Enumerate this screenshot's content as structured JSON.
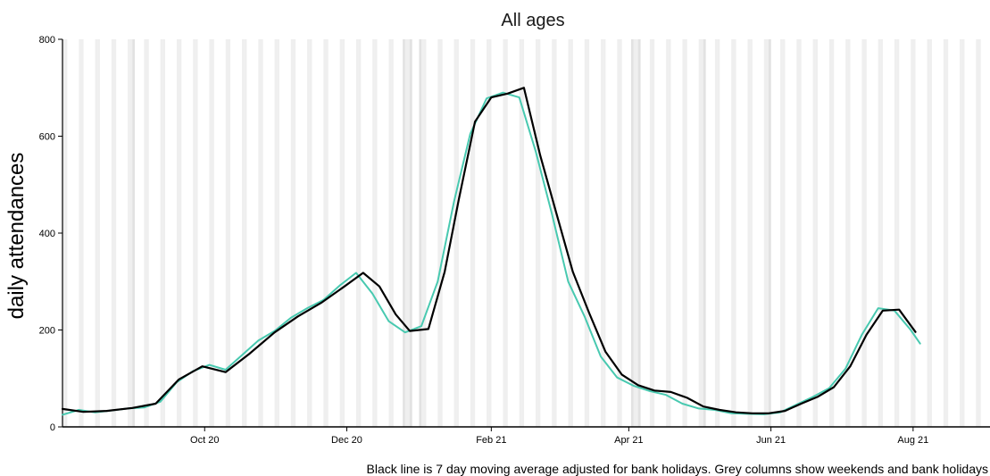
{
  "chart_data": {
    "type": "line",
    "title": "All ages",
    "xlabel": "",
    "ylabel": "daily attendances",
    "caption": "Black line is 7 day moving average adjusted for bank holidays. Grey columns show weekends and bank holidays",
    "x_range": [
      "2020-08-01",
      "2021-09-03"
    ],
    "ylim": [
      0,
      800
    ],
    "y_ticks": [
      0,
      200,
      400,
      600,
      800
    ],
    "x_ticks": [
      {
        "date": "2020-10-01",
        "label": "Oct 20"
      },
      {
        "date": "2020-12-01",
        "label": "Dec 20"
      },
      {
        "date": "2021-02-01",
        "label": "Feb 21"
      },
      {
        "date": "2021-04-01",
        "label": "Apr 21"
      },
      {
        "date": "2021-06-01",
        "label": "Jun 21"
      },
      {
        "date": "2021-08-01",
        "label": "Aug 21"
      }
    ],
    "bank_holidays": [
      "2020-08-31",
      "2020-12-25",
      "2020-12-28",
      "2021-01-01",
      "2021-04-02",
      "2021-04-05",
      "2021-05-03",
      "2021-05-31"
    ],
    "grid": false,
    "legend": "none",
    "series": [
      {
        "role": "daily",
        "color": "#48c9b0",
        "points": [
          [
            "2020-08-01",
            25
          ],
          [
            "2020-08-08",
            35
          ],
          [
            "2020-08-15",
            30
          ],
          [
            "2020-08-22",
            34
          ],
          [
            "2020-08-29",
            38
          ],
          [
            "2020-09-05",
            40
          ],
          [
            "2020-09-12",
            52
          ],
          [
            "2020-09-19",
            92
          ],
          [
            "2020-09-26",
            115
          ],
          [
            "2020-10-03",
            128
          ],
          [
            "2020-10-10",
            118
          ],
          [
            "2020-10-17",
            148
          ],
          [
            "2020-10-24",
            178
          ],
          [
            "2020-10-31",
            198
          ],
          [
            "2020-11-07",
            225
          ],
          [
            "2020-11-14",
            245
          ],
          [
            "2020-11-21",
            262
          ],
          [
            "2020-11-28",
            292
          ],
          [
            "2020-12-05",
            318
          ],
          [
            "2020-12-12",
            275
          ],
          [
            "2020-12-19",
            218
          ],
          [
            "2020-12-26",
            195
          ],
          [
            "2021-01-02",
            208
          ],
          [
            "2021-01-09",
            300
          ],
          [
            "2021-01-16",
            465
          ],
          [
            "2021-01-23",
            605
          ],
          [
            "2021-01-30",
            678
          ],
          [
            "2021-02-06",
            690
          ],
          [
            "2021-02-13",
            680
          ],
          [
            "2021-02-20",
            570
          ],
          [
            "2021-02-27",
            440
          ],
          [
            "2021-03-06",
            300
          ],
          [
            "2021-03-13",
            228
          ],
          [
            "2021-03-20",
            145
          ],
          [
            "2021-03-27",
            102
          ],
          [
            "2021-04-03",
            85
          ],
          [
            "2021-04-10",
            74
          ],
          [
            "2021-04-17",
            66
          ],
          [
            "2021-04-24",
            48
          ],
          [
            "2021-05-01",
            38
          ],
          [
            "2021-05-08",
            35
          ],
          [
            "2021-05-15",
            28
          ],
          [
            "2021-05-22",
            27
          ],
          [
            "2021-05-29",
            26
          ],
          [
            "2021-06-05",
            30
          ],
          [
            "2021-06-12",
            46
          ],
          [
            "2021-06-19",
            62
          ],
          [
            "2021-06-26",
            80
          ],
          [
            "2021-07-03",
            120
          ],
          [
            "2021-07-10",
            190
          ],
          [
            "2021-07-17",
            245
          ],
          [
            "2021-07-24",
            240
          ],
          [
            "2021-07-31",
            200
          ],
          [
            "2021-08-04",
            172
          ]
        ]
      },
      {
        "role": "7-day moving average",
        "color": "#000000",
        "points": [
          [
            "2020-08-01",
            37
          ],
          [
            "2020-08-10",
            31
          ],
          [
            "2020-08-20",
            33
          ],
          [
            "2020-08-31",
            39
          ],
          [
            "2020-09-10",
            48
          ],
          [
            "2020-09-20",
            98
          ],
          [
            "2020-09-30",
            125
          ],
          [
            "2020-10-10",
            113
          ],
          [
            "2020-10-20",
            150
          ],
          [
            "2020-10-31",
            195
          ],
          [
            "2020-11-10",
            228
          ],
          [
            "2020-11-20",
            256
          ],
          [
            "2020-11-30",
            290
          ],
          [
            "2020-12-08",
            318
          ],
          [
            "2020-12-15",
            290
          ],
          [
            "2020-12-22",
            232
          ],
          [
            "2020-12-28",
            198
          ],
          [
            "2021-01-05",
            202
          ],
          [
            "2021-01-12",
            320
          ],
          [
            "2021-01-18",
            468
          ],
          [
            "2021-01-25",
            630
          ],
          [
            "2021-02-01",
            680
          ],
          [
            "2021-02-08",
            688
          ],
          [
            "2021-02-15",
            700
          ],
          [
            "2021-02-22",
            560
          ],
          [
            "2021-03-01",
            440
          ],
          [
            "2021-03-08",
            320
          ],
          [
            "2021-03-15",
            235
          ],
          [
            "2021-03-22",
            155
          ],
          [
            "2021-03-29",
            108
          ],
          [
            "2021-04-05",
            86
          ],
          [
            "2021-04-12",
            75
          ],
          [
            "2021-04-19",
            72
          ],
          [
            "2021-04-26",
            60
          ],
          [
            "2021-05-03",
            42
          ],
          [
            "2021-05-10",
            35
          ],
          [
            "2021-05-17",
            30
          ],
          [
            "2021-05-24",
            28
          ],
          [
            "2021-05-31",
            28
          ],
          [
            "2021-06-07",
            33
          ],
          [
            "2021-06-14",
            48
          ],
          [
            "2021-06-21",
            62
          ],
          [
            "2021-06-28",
            82
          ],
          [
            "2021-07-05",
            125
          ],
          [
            "2021-07-12",
            190
          ],
          [
            "2021-07-19",
            240
          ],
          [
            "2021-07-26",
            242
          ],
          [
            "2021-08-02",
            196
          ]
        ]
      }
    ]
  }
}
